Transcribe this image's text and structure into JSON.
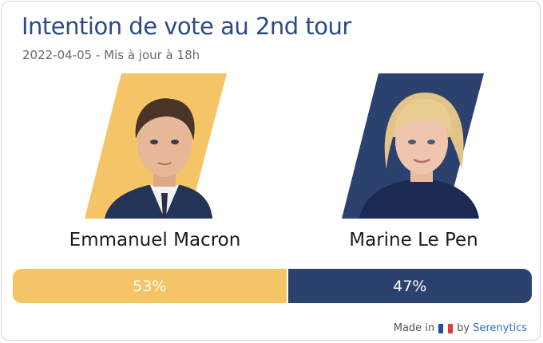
{
  "header": {
    "title": "Intention de vote au 2nd tour",
    "subtitle": "2022-04-05 - Mis à jour à 18h"
  },
  "candidates": [
    {
      "name": "Emmanuel Macron",
      "percent_label": "53%",
      "share": 53,
      "color": "#f4c467",
      "portrait": "man-in-suit-portrait"
    },
    {
      "name": "Marine Le Pen",
      "percent_label": "47%",
      "share": 47,
      "color": "#2c426e",
      "portrait": "blonde-woman-portrait"
    }
  ],
  "footer": {
    "made_in": "Made in",
    "by": "by",
    "brand": "Serenytics",
    "flag_colors": [
      "#1f4fa3",
      "#ffffff",
      "#e03a3e"
    ]
  }
}
